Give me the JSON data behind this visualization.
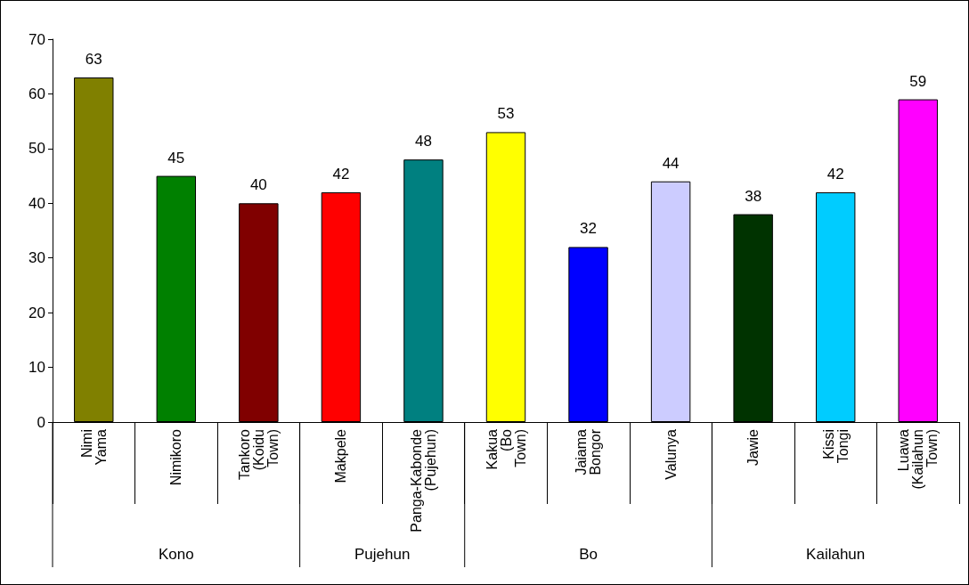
{
  "chart_data": {
    "type": "bar",
    "categories": [
      "Nimi Yama",
      "Nimikoro",
      "Tankoro (Koidu Town)",
      "Makpele",
      "Panga-Kabonde (Pujehun)",
      "Kakua (Bo Town)",
      "Jaiama Bongor",
      "Valunya",
      "Jawie",
      "Kissi Tongi",
      "Luawa (Kailahun Town)"
    ],
    "values": [
      63,
      45,
      40,
      42,
      48,
      53,
      32,
      44,
      38,
      42,
      59
    ],
    "colors": [
      "#808000",
      "#008000",
      "#800000",
      "#ff0000",
      "#008080",
      "#ffff00",
      "#0000ff",
      "#ccccff",
      "#003300",
      "#00ccff",
      "#ff00ff"
    ],
    "ylim": [
      0,
      70
    ],
    "yticks": [
      0,
      10,
      20,
      30,
      40,
      50,
      60,
      70
    ],
    "data_labels": true,
    "grid": false,
    "annotations": [
      "Kono",
      "Pujehun",
      "Bo",
      "Kailahun"
    ]
  }
}
